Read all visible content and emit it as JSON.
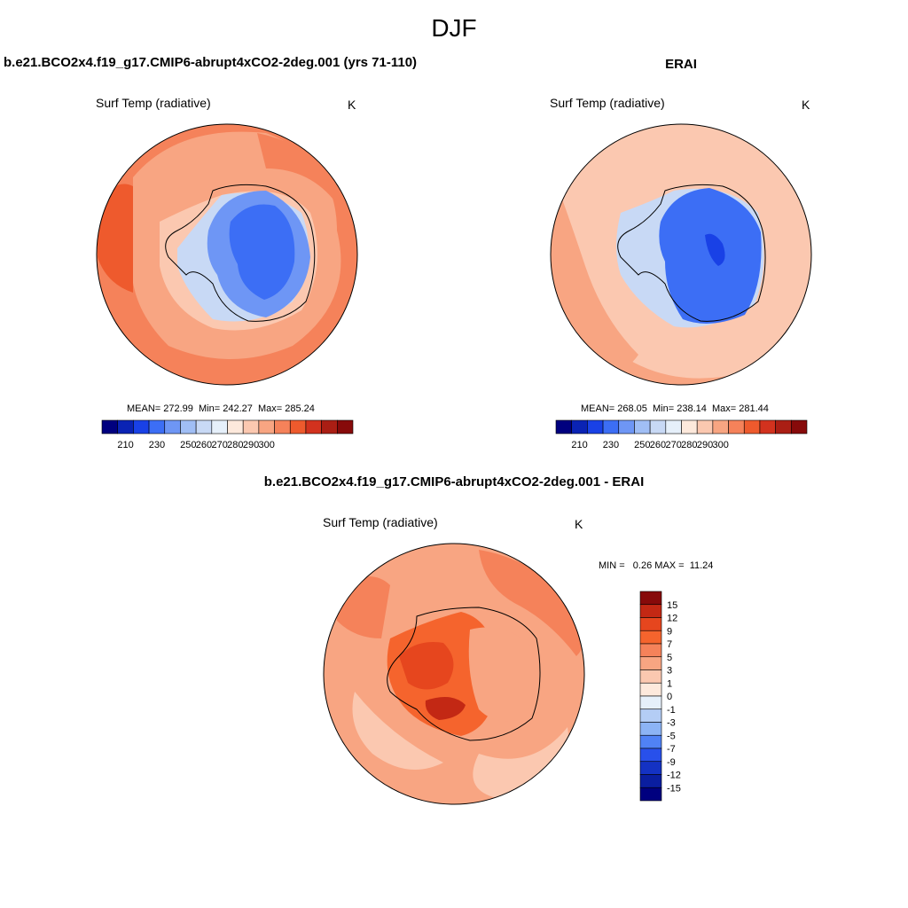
{
  "title": "DJF",
  "panels": [
    {
      "title": "b.e21.BCO2x4.f19_g17.CMIP6-abrupt4xCO2-2deg.001 (yrs 71-110)",
      "variable": "Surf Temp (radiative)",
      "units": "K",
      "stats": "MEAN= 272.99  Min= 242.27  Max= 285.24"
    },
    {
      "title": "ERAI",
      "variable": "Surf Temp (radiative)",
      "units": "K",
      "stats": "MEAN= 268.05  Min= 238.14  Max= 281.44"
    },
    {
      "title": "b.e21.BCO2x4.f19_g17.CMIP6-abrupt4xCO2-2deg.001 - ERAI",
      "variable": "Surf Temp (radiative)",
      "units": "K",
      "stats": "MIN =   0.26 MAX =  11.24"
    }
  ],
  "colorbar_abs": {
    "tick_labels": [
      "210",
      "230",
      "250",
      "260",
      "270",
      "280",
      "290",
      "300"
    ],
    "colors": [
      "#00007f",
      "#0a23b4",
      "#1941e6",
      "#3c6ef5",
      "#6e96f5",
      "#a0bef5",
      "#c8d9f5",
      "#e6f0fa",
      "#fde9dc",
      "#fbc8b0",
      "#f8a582",
      "#f5825a",
      "#ee5a2d",
      "#d2321e",
      "#aa1e14",
      "#870a0a"
    ]
  },
  "colorbar_diff": {
    "tick_labels": [
      "15",
      "12",
      "9",
      "7",
      "5",
      "3",
      "1",
      "0",
      "-1",
      "-3",
      "-5",
      "-7",
      "-9",
      "-12",
      "-15"
    ],
    "colors": [
      "#870a0a",
      "#c32814",
      "#e6461e",
      "#f5642d",
      "#f5825a",
      "#f8a582",
      "#fbc8b0",
      "#fde9dc",
      "#e6f0fa",
      "#b4cdf5",
      "#8cb4f5",
      "#5082f5",
      "#2850eb",
      "#1432c3",
      "#0a1ea0",
      "#00007f"
    ]
  }
}
